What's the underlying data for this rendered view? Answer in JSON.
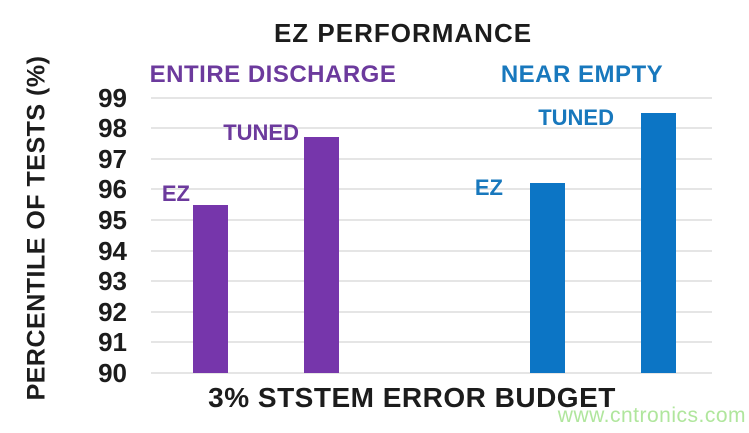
{
  "title": "EZ PERFORMANCE",
  "watermark": {
    "text": "www.cntronics.com",
    "color": "#b0e69d"
  },
  "colors": {
    "background": "#ffffff",
    "text": "#1c1c1c",
    "gridline": "#e5e5e5",
    "purple_bar": "#7636ab",
    "purple_text": "#6c3a9d",
    "blue_bar": "#0c75c5",
    "blue_text": "#1878bd"
  },
  "chart_data": {
    "type": "bar",
    "title": "EZ PERFORMANCE",
    "xlabel": "3% STSTEM ERROR BUDGET",
    "ylabel": "PERCENTILE OF TESTS (%)",
    "ylim": [
      90,
      99
    ],
    "yticks": [
      99,
      98,
      97,
      96,
      95,
      94,
      93,
      92,
      91,
      90
    ],
    "grid": true,
    "legend": "none",
    "series": [
      {
        "name": "ENTIRE DISCHARGE",
        "color": "#7636ab",
        "label_color": "#6c3a9d",
        "bars": [
          {
            "label": "EZ",
            "value": 95.5
          },
          {
            "label": "TUNED",
            "value": 97.7
          }
        ]
      },
      {
        "name": "NEAR EMPTY",
        "color": "#0c75c5",
        "label_color": "#1878bd",
        "bars": [
          {
            "label": "EZ",
            "value": 96.2
          },
          {
            "label": "TUNED",
            "value": 98.5
          }
        ]
      }
    ]
  }
}
